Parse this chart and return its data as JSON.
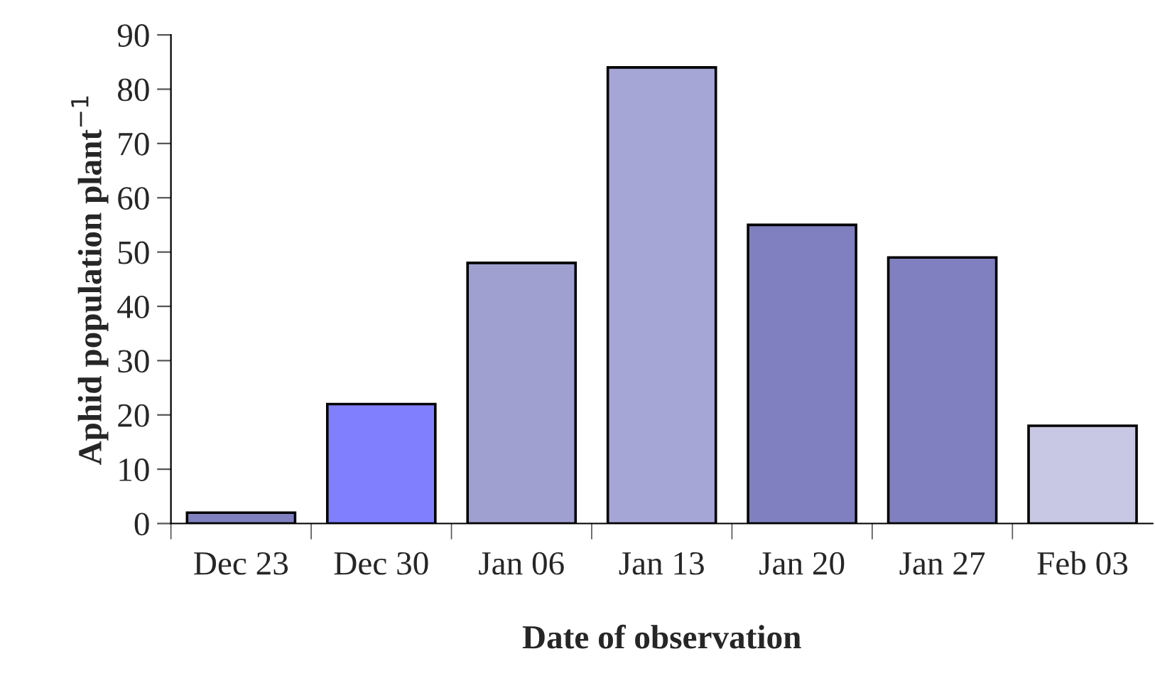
{
  "chart_data": {
    "type": "bar",
    "xlabel": "Date of observation",
    "ylabel": "Aphid population plant$^{−1}$",
    "categories": [
      "Dec 23",
      "Dec 30",
      "Jan 06",
      "Jan 13",
      "Jan 20",
      "Jan 27",
      "Feb 03"
    ],
    "values": [
      2,
      22,
      48,
      84,
      55,
      49,
      18
    ],
    "colors": [
      "#8080c0",
      "#8080ff",
      "#a0a0d0",
      "#a6a6d6",
      "#8080c0",
      "#8080c0",
      "#c8c8e4"
    ],
    "ylim": [
      0,
      90
    ],
    "yticks": [
      0,
      10,
      20,
      30,
      40,
      50,
      60,
      70,
      80,
      90
    ],
    "grid": false,
    "legend": false
  }
}
